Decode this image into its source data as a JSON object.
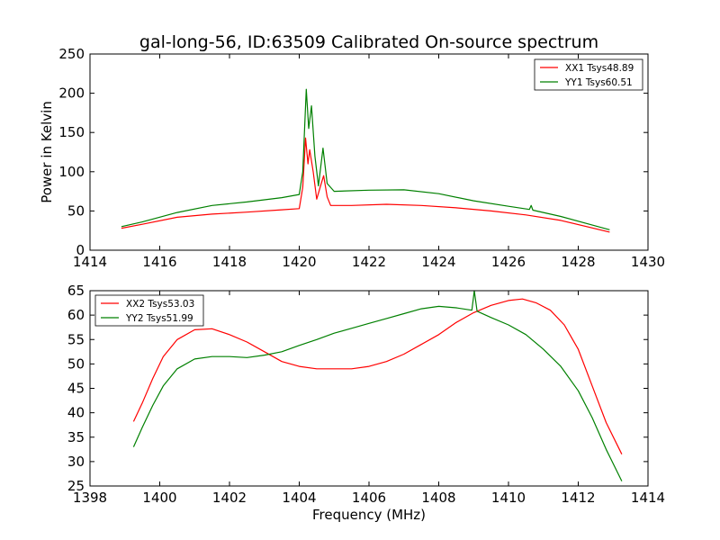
{
  "figure": {
    "title": "gal-long-56, ID:63509 Calibrated On-source spectrum",
    "shared_xlabel": "Frequency (MHz)"
  },
  "colors": {
    "red": "#ff0000",
    "green": "#008000"
  },
  "chart_data": [
    {
      "type": "line",
      "title": "gal-long-56, ID:63509 Calibrated On-source spectrum",
      "xlabel": "",
      "ylabel": "Power in Kelvin",
      "xlim": [
        1414,
        1430
      ],
      "ylim": [
        0,
        250
      ],
      "xticks": [
        "1414",
        "1416",
        "1418",
        "1420",
        "1422",
        "1424",
        "1426",
        "1428",
        "1430"
      ],
      "yticks": [
        "0",
        "50",
        "100",
        "150",
        "200",
        "250"
      ],
      "grid": false,
      "legend_position": "top-right",
      "series": [
        {
          "name": "XX1 Tsys48.89",
          "color": "#ff0000",
          "points": [
            [
              1414.9,
              28
            ],
            [
              1415.5,
              33
            ],
            [
              1416.5,
              42
            ],
            [
              1417.5,
              46
            ],
            [
              1418.5,
              48.5
            ],
            [
              1419.5,
              51.5
            ],
            [
              1420.0,
              53
            ],
            [
              1420.1,
              80
            ],
            [
              1420.18,
              143
            ],
            [
              1420.25,
              110
            ],
            [
              1420.3,
              128
            ],
            [
              1420.4,
              100
            ],
            [
              1420.5,
              65
            ],
            [
              1420.6,
              80
            ],
            [
              1420.7,
              95
            ],
            [
              1420.8,
              68
            ],
            [
              1420.9,
              57
            ],
            [
              1421.5,
              57
            ],
            [
              1422.5,
              58.5
            ],
            [
              1423.5,
              57
            ],
            [
              1424.5,
              54
            ],
            [
              1425.5,
              50
            ],
            [
              1426.5,
              45
            ],
            [
              1427.5,
              38
            ],
            [
              1428.9,
              23
            ]
          ]
        },
        {
          "name": "YY1 Tsys60.51",
          "color": "#008000",
          "points": [
            [
              1414.9,
              30
            ],
            [
              1415.5,
              36
            ],
            [
              1416.5,
              48
            ],
            [
              1417.5,
              57
            ],
            [
              1418.5,
              61.5
            ],
            [
              1419.5,
              67
            ],
            [
              1420.0,
              71
            ],
            [
              1420.1,
              100
            ],
            [
              1420.2,
              205
            ],
            [
              1420.27,
              155
            ],
            [
              1420.35,
              184
            ],
            [
              1420.45,
              120
            ],
            [
              1420.55,
              82
            ],
            [
              1420.68,
              130
            ],
            [
              1420.8,
              85
            ],
            [
              1421.0,
              75
            ],
            [
              1422.0,
              76.5
            ],
            [
              1423.0,
              77
            ],
            [
              1424.0,
              72
            ],
            [
              1425.0,
              63
            ],
            [
              1426.0,
              56
            ],
            [
              1426.6,
              52
            ],
            [
              1426.65,
              57
            ],
            [
              1426.7,
              51
            ],
            [
              1427.5,
              43
            ],
            [
              1428.9,
              26
            ]
          ]
        }
      ]
    },
    {
      "type": "line",
      "title": "",
      "xlabel": "Frequency (MHz)",
      "ylabel": "",
      "xlim": [
        1398,
        1414
      ],
      "ylim": [
        25,
        65
      ],
      "xticks": [
        "1398",
        "1400",
        "1402",
        "1404",
        "1406",
        "1408",
        "1410",
        "1412",
        "1414"
      ],
      "yticks": [
        "25",
        "30",
        "35",
        "40",
        "45",
        "50",
        "55",
        "60",
        "65"
      ],
      "grid": false,
      "legend_position": "top-left",
      "series": [
        {
          "name": "XX2 Tsys53.03",
          "color": "#ff0000",
          "points": [
            [
              1399.25,
              38.2
            ],
            [
              1399.5,
              42
            ],
            [
              1399.8,
              47
            ],
            [
              1400.1,
              51.5
            ],
            [
              1400.5,
              55
            ],
            [
              1401.0,
              57
            ],
            [
              1401.5,
              57.2
            ],
            [
              1402.0,
              56
            ],
            [
              1402.5,
              54.5
            ],
            [
              1403.0,
              52.5
            ],
            [
              1403.5,
              50.5
            ],
            [
              1404.0,
              49.5
            ],
            [
              1404.5,
              49
            ],
            [
              1405.0,
              49
            ],
            [
              1405.5,
              49
            ],
            [
              1406.0,
              49.5
            ],
            [
              1406.5,
              50.5
            ],
            [
              1407.0,
              52
            ],
            [
              1407.5,
              54
            ],
            [
              1408.0,
              56
            ],
            [
              1408.5,
              58.5
            ],
            [
              1409.0,
              60.5
            ],
            [
              1409.5,
              62
            ],
            [
              1410.0,
              63
            ],
            [
              1410.4,
              63.3
            ],
            [
              1410.8,
              62.5
            ],
            [
              1411.2,
              61
            ],
            [
              1411.6,
              58
            ],
            [
              1412.0,
              53
            ],
            [
              1412.4,
              45.5
            ],
            [
              1412.8,
              38
            ],
            [
              1413.25,
              31.5
            ]
          ]
        },
        {
          "name": "YY2 Tsys51.99",
          "color": "#008000",
          "points": [
            [
              1399.25,
              33
            ],
            [
              1399.5,
              37
            ],
            [
              1399.8,
              41.5
            ],
            [
              1400.1,
              45.5
            ],
            [
              1400.5,
              49
            ],
            [
              1401.0,
              51
            ],
            [
              1401.5,
              51.5
            ],
            [
              1402.0,
              51.5
            ],
            [
              1402.5,
              51.3
            ],
            [
              1403.0,
              51.8
            ],
            [
              1403.5,
              52.5
            ],
            [
              1404.0,
              53.8
            ],
            [
              1404.5,
              55
            ],
            [
              1405.0,
              56.3
            ],
            [
              1405.5,
              57.3
            ],
            [
              1406.0,
              58.3
            ],
            [
              1406.5,
              59.3
            ],
            [
              1407.0,
              60.3
            ],
            [
              1407.5,
              61.3
            ],
            [
              1408.0,
              61.8
            ],
            [
              1408.5,
              61.5
            ],
            [
              1408.95,
              61
            ],
            [
              1409.02,
              65
            ],
            [
              1409.1,
              60.8
            ],
            [
              1409.5,
              59.5
            ],
            [
              1410.0,
              58
            ],
            [
              1410.5,
              56
            ],
            [
              1411.0,
              53
            ],
            [
              1411.5,
              49.5
            ],
            [
              1412.0,
              44.5
            ],
            [
              1412.4,
              39
            ],
            [
              1412.8,
              32.5
            ],
            [
              1413.25,
              26
            ]
          ]
        }
      ]
    }
  ]
}
